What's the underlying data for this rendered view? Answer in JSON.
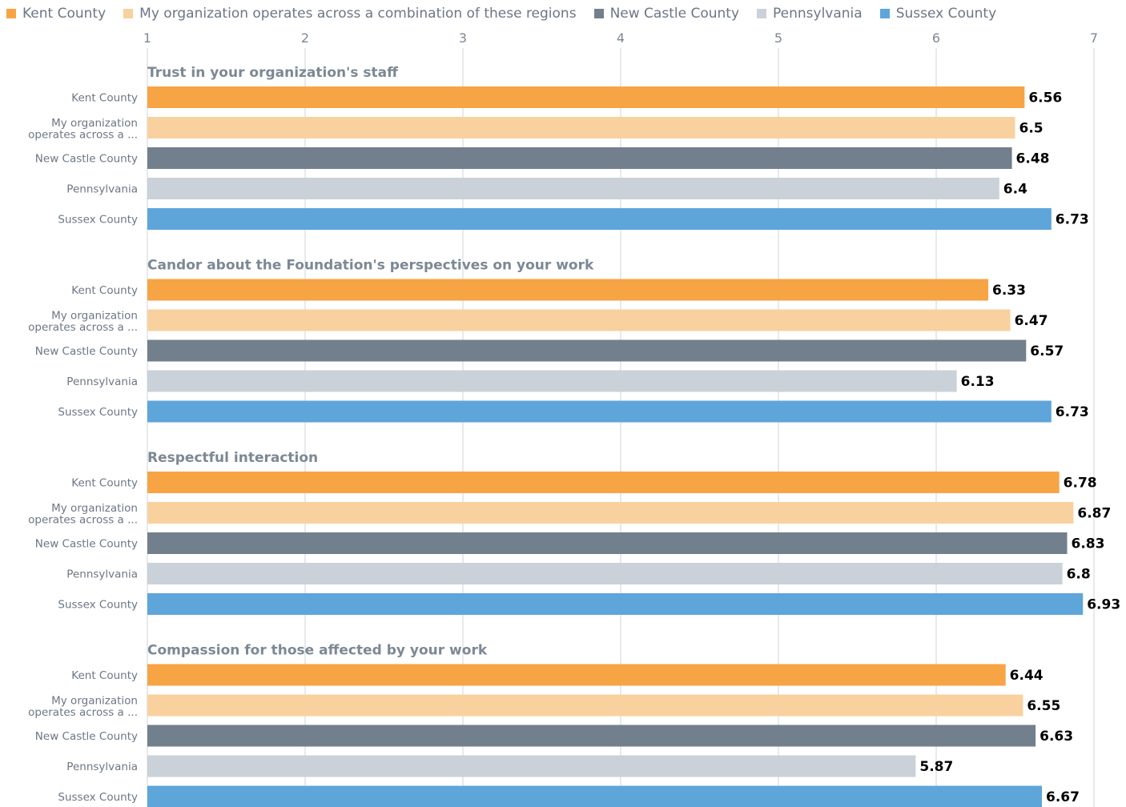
{
  "colors": {
    "kent": "#f7a445",
    "combo": "#f9d19e",
    "newcastle": "#727f8c",
    "pennsylvania": "#cbd1d8",
    "sussex": "#5ea5da",
    "gridline": "#cfd4da",
    "axis_text": "#7c8894",
    "group_title": "#7c8894",
    "category_text": "#6b7785",
    "value_text": "#000000"
  },
  "legend": [
    {
      "label": "Kent County",
      "color_key": "kent"
    },
    {
      "label": "My organization operates across a combination of these regions",
      "color_key": "combo"
    },
    {
      "label": "New Castle County",
      "color_key": "newcastle"
    },
    {
      "label": "Pennsylvania",
      "color_key": "pennsylvania"
    },
    {
      "label": "Sussex County",
      "color_key": "sussex"
    }
  ],
  "chart_data": {
    "type": "bar",
    "orientation": "horizontal",
    "xlim": [
      1,
      7
    ],
    "x_ticks": [
      "1",
      "2",
      "3",
      "4",
      "5",
      "6",
      "7"
    ],
    "grid": true,
    "legend_position": "top-left",
    "category_labels": [
      [
        "Kent County"
      ],
      [
        "My organization",
        "operates across a ..."
      ],
      [
        "New Castle County"
      ],
      [
        "Pennsylvania"
      ],
      [
        "Sussex County"
      ]
    ],
    "series_color_keys": [
      "kent",
      "combo",
      "newcastle",
      "pennsylvania",
      "sussex"
    ],
    "groups": [
      {
        "title": "Trust in your organization's staff",
        "values": [
          6.56,
          6.5,
          6.48,
          6.4,
          6.73
        ],
        "value_labels": [
          "6.56",
          "6.5",
          "6.48",
          "6.4",
          "6.73"
        ]
      },
      {
        "title": "Candor about the Foundation's perspectives on your work",
        "values": [
          6.33,
          6.47,
          6.57,
          6.13,
          6.73
        ],
        "value_labels": [
          "6.33",
          "6.47",
          "6.57",
          "6.13",
          "6.73"
        ]
      },
      {
        "title": "Respectful interaction",
        "values": [
          6.78,
          6.87,
          6.83,
          6.8,
          6.93
        ],
        "value_labels": [
          "6.78",
          "6.87",
          "6.83",
          "6.8",
          "6.93"
        ]
      },
      {
        "title": "Compassion for those affected by your work",
        "values": [
          6.44,
          6.55,
          6.63,
          5.87,
          6.67
        ],
        "value_labels": [
          "6.44",
          "6.55",
          "6.63",
          "5.87",
          "6.67"
        ]
      }
    ]
  }
}
